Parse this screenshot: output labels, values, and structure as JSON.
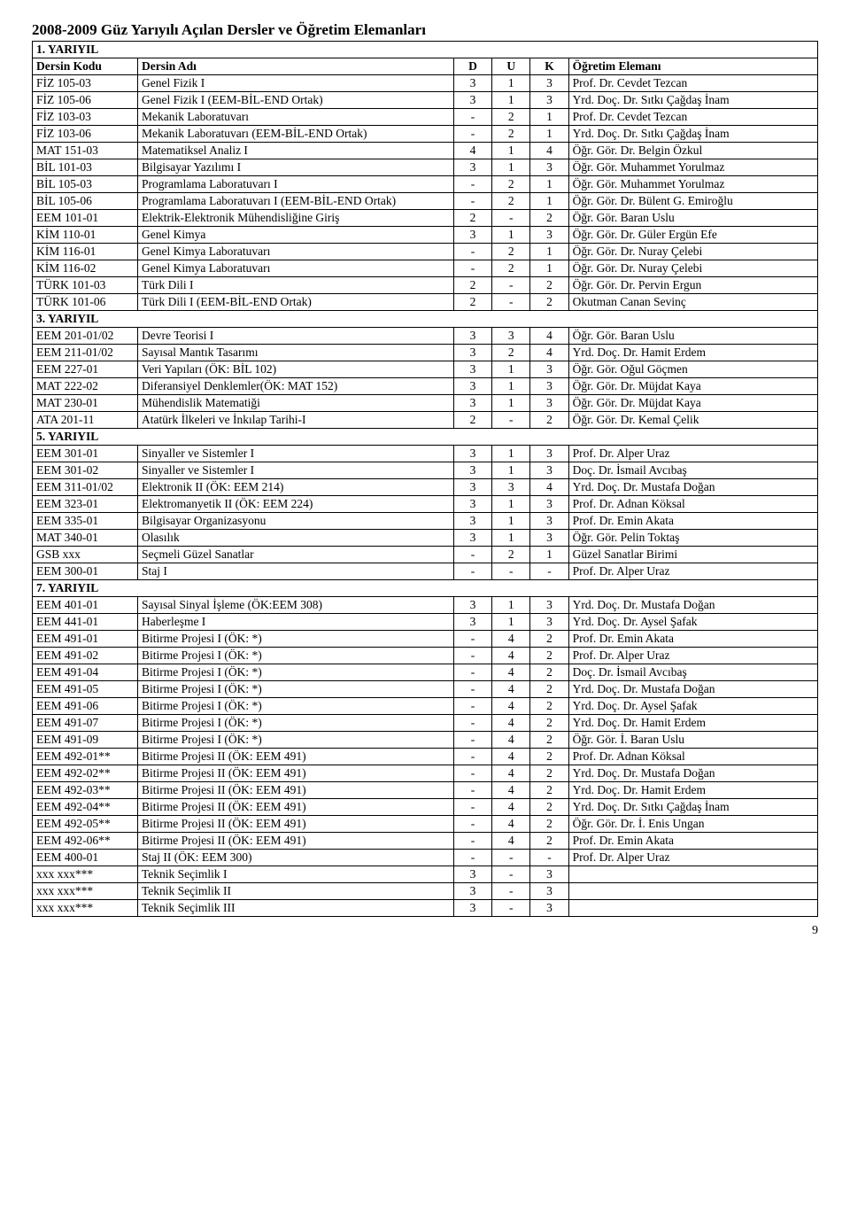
{
  "title": "2008-2009 Güz Yarıyılı Açılan Dersler ve Öğretim Elemanları",
  "headers": {
    "code": "Dersin Kodu",
    "name": "Dersin Adı",
    "d": "D",
    "u": "U",
    "k": "K",
    "inst": "Öğretim Elemanı"
  },
  "page_number": "9",
  "sections": [
    {
      "label": "1. YARIYIL",
      "rows": [
        {
          "code": "FİZ 105-03",
          "name": "Genel Fizik I",
          "d": "3",
          "u": "1",
          "k": "3",
          "inst": "Prof. Dr. Cevdet Tezcan"
        },
        {
          "code": "FİZ 105-06",
          "name": "Genel Fizik I  (EEM-BİL-END Ortak)",
          "d": "3",
          "u": "1",
          "k": "3",
          "inst": "Yrd. Doç. Dr. Sıtkı Çağdaş İnam"
        },
        {
          "code": "FİZ 103-03",
          "name": "Mekanik Laboratuvarı",
          "d": "-",
          "u": "2",
          "k": "1",
          "inst": "Prof. Dr. Cevdet Tezcan"
        },
        {
          "code": "FİZ 103-06",
          "name": "Mekanik Laboratuvarı (EEM-BİL-END Ortak)",
          "d": "-",
          "u": "2",
          "k": "1",
          "inst": "Yrd. Doç. Dr. Sıtkı Çağdaş İnam"
        },
        {
          "code": "MAT 151-03",
          "name": "Matematiksel Analiz I",
          "d": "4",
          "u": "1",
          "k": "4",
          "inst": "Öğr. Gör. Dr. Belgin Özkul"
        },
        {
          "code": "BİL 101-03",
          "name": "Bilgisayar Yazılımı I",
          "d": "3",
          "u": "1",
          "k": "3",
          "inst": "Öğr. Gör. Muhammet Yorulmaz"
        },
        {
          "code": "BİL 105-03",
          "name": "Programlama Laboratuvarı I",
          "d": "-",
          "u": "2",
          "k": "1",
          "inst": "Öğr. Gör. Muhammet Yorulmaz"
        },
        {
          "code": "BİL 105-06",
          "name": "Programlama Laboratuvarı I (EEM-BİL-END Ortak)",
          "d": "-",
          "u": "2",
          "k": "1",
          "inst": "Öğr. Gör. Dr. Bülent G. Emiroğlu"
        },
        {
          "code": "EEM 101-01",
          "name": "Elektrik-Elektronik Mühendisliğine Giriş",
          "d": "2",
          "u": "-",
          "k": "2",
          "inst": "Öğr. Gör. Baran Uslu"
        },
        {
          "code": "KİM 110-01",
          "name": "Genel Kimya",
          "d": "3",
          "u": "1",
          "k": "3",
          "inst": "Öğr. Gör. Dr. Güler Ergün Efe"
        },
        {
          "code": "KİM 116-01",
          "name": "Genel Kimya Laboratuvarı",
          "d": "-",
          "u": "2",
          "k": "1",
          "inst": "Öğr. Gör. Dr. Nuray Çelebi"
        },
        {
          "code": "KİM 116-02",
          "name": "Genel Kimya Laboratuvarı",
          "d": "-",
          "u": "2",
          "k": "1",
          "inst": "Öğr. Gör. Dr. Nuray Çelebi"
        },
        {
          "code": "TÜRK 101-03",
          "name": "Türk Dili I",
          "d": "2",
          "u": "-",
          "k": "2",
          "inst": "Öğr. Gör. Dr. Pervin Ergun"
        },
        {
          "code": "TÜRK 101-06",
          "name": "Türk Dili I (EEM-BİL-END Ortak)",
          "d": "2",
          "u": "-",
          "k": "2",
          "inst": "Okutman Canan Sevinç"
        }
      ]
    },
    {
      "label": "3. YARIYIL",
      "rows": [
        {
          "code": "EEM 201-01/02",
          "name": "Devre Teorisi I",
          "d": "3",
          "u": "3",
          "k": "4",
          "inst": "Öğr. Gör. Baran Uslu"
        },
        {
          "code": "EEM 211-01/02",
          "name": "Sayısal Mantık Tasarımı",
          "d": "3",
          "u": "2",
          "k": "4",
          "inst": "Yrd. Doç. Dr. Hamit Erdem"
        },
        {
          "code": "EEM 227-01",
          "name": "Veri Yapıları            (ÖK: BİL 102)",
          "d": "3",
          "u": "1",
          "k": "3",
          "inst": "Öğr. Gör. Oğul Göçmen"
        },
        {
          "code": "MAT 222-02",
          "name": "Diferansiyel Denklemler(ÖK: MAT 152)",
          "d": "3",
          "u": "1",
          "k": "3",
          "inst": "Öğr. Gör. Dr. Müjdat Kaya"
        },
        {
          "code": "MAT 230-01",
          "name": "Mühendislik Matematiği",
          "d": "3",
          "u": "1",
          "k": "3",
          "inst": "Öğr. Gör. Dr. Müjdat Kaya"
        },
        {
          "code": "ATA 201-11",
          "name": "Atatürk İlkeleri ve İnkılap Tarihi-I",
          "d": "2",
          "u": "-",
          "k": "2",
          "inst": "Öğr. Gör. Dr. Kemal Çelik"
        }
      ]
    },
    {
      "label": "5. YARIYIL",
      "rows": [
        {
          "code": "EEM 301-01",
          "name": "Sinyaller ve Sistemler I",
          "d": "3",
          "u": "1",
          "k": "3",
          "inst": "Prof. Dr. Alper Uraz"
        },
        {
          "code": "EEM 301-02",
          "name": "Sinyaller ve Sistemler I",
          "d": "3",
          "u": "1",
          "k": "3",
          "inst": "Doç. Dr. İsmail Avcıbaş"
        },
        {
          "code": "EEM 311-01/02",
          "name": "Elektronik II        (ÖK: EEM 214)",
          "d": "3",
          "u": "3",
          "k": "4",
          "inst": "Yrd. Doç. Dr. Mustafa Doğan"
        },
        {
          "code": "EEM 323-01",
          "name": "Elektromanyetik II    (ÖK: EEM 224)",
          "d": "3",
          "u": "1",
          "k": "3",
          "inst": "Prof. Dr. Adnan Köksal"
        },
        {
          "code": "EEM 335-01",
          "name": "Bilgisayar Organizasyonu",
          "d": "3",
          "u": "1",
          "k": "3",
          "inst": "Prof. Dr. Emin Akata"
        },
        {
          "code": "MAT 340-01",
          "name": "Olasılık",
          "d": "3",
          "u": "1",
          "k": "3",
          "inst": "Öğr. Gör. Pelin Toktaş"
        },
        {
          "code": "GSB xxx",
          "name": "Seçmeli Güzel Sanatlar",
          "d": "-",
          "u": "2",
          "k": "1",
          "inst": "Güzel Sanatlar Birimi"
        },
        {
          "code": "EEM 300-01",
          "name": "Staj I",
          "d": "-",
          "u": "-",
          "k": "-",
          "inst": "Prof. Dr. Alper Uraz"
        }
      ]
    },
    {
      "label": "7. YARIYIL",
      "rows": [
        {
          "code": "EEM 401-01",
          "name": "Sayısal Sinyal İşleme    (ÖK:EEM 308)",
          "d": "3",
          "u": "1",
          "k": "3",
          "inst": "Yrd. Doç. Dr. Mustafa Doğan"
        },
        {
          "code": "EEM 441-01",
          "name": "Haberleşme I",
          "d": "3",
          "u": "1",
          "k": "3",
          "inst": "Yrd. Doç. Dr. Aysel Şafak"
        },
        {
          "code": "EEM 491-01",
          "name": "Bitirme Projesi I       (ÖK: *)",
          "d": "-",
          "u": "4",
          "k": "2",
          "inst": "Prof. Dr. Emin Akata"
        },
        {
          "code": "EEM 491-02",
          "name": "Bitirme Projesi I       (ÖK: *)",
          "d": "-",
          "u": "4",
          "k": "2",
          "inst": "Prof. Dr. Alper Uraz"
        },
        {
          "code": "EEM 491-04",
          "name": "Bitirme Projesi I       (ÖK: *)",
          "d": "-",
          "u": "4",
          "k": "2",
          "inst": "Doç. Dr. İsmail Avcıbaş"
        },
        {
          "code": "EEM 491-05",
          "name": "Bitirme Projesi I       (ÖK: *)",
          "d": "-",
          "u": "4",
          "k": "2",
          "inst": "Yrd. Doç. Dr. Mustafa Doğan"
        },
        {
          "code": "EEM 491-06",
          "name": "Bitirme Projesi I       (ÖK: *)",
          "d": "-",
          "u": "4",
          "k": "2",
          "inst": "Yrd. Doç. Dr. Aysel Şafak"
        },
        {
          "code": "EEM 491-07",
          "name": "Bitirme Projesi I       (ÖK: *)",
          "d": "-",
          "u": "4",
          "k": "2",
          "inst": "Yrd. Doç. Dr. Hamit Erdem"
        },
        {
          "code": "EEM 491-09",
          "name": "Bitirme Projesi I       (ÖK: *)",
          "d": "-",
          "u": "4",
          "k": "2",
          "inst": "Öğr. Gör. İ. Baran Uslu"
        },
        {
          "code": "EEM 492-01**",
          "name": "Bitirme Projesi II       (ÖK: EEM 491)",
          "d": "-",
          "u": "4",
          "k": "2",
          "inst": "Prof. Dr. Adnan Köksal"
        },
        {
          "code": "EEM 492-02**",
          "name": "Bitirme Projesi II       (ÖK: EEM 491)",
          "d": "-",
          "u": "4",
          "k": "2",
          "inst": "Yrd. Doç. Dr. Mustafa Doğan"
        },
        {
          "code": "EEM 492-03**",
          "name": "Bitirme Projesi II       (ÖK: EEM 491)",
          "d": "-",
          "u": "4",
          "k": "2",
          "inst": "Yrd. Doç. Dr. Hamit Erdem"
        },
        {
          "code": "EEM 492-04**",
          "name": "Bitirme Projesi II       (ÖK: EEM 491)",
          "d": "-",
          "u": "4",
          "k": "2",
          "inst": "Yrd. Doç. Dr. Sıtkı Çağdaş İnam"
        },
        {
          "code": "EEM 492-05**",
          "name": "Bitirme Projesi II       (ÖK: EEM 491)",
          "d": "-",
          "u": "4",
          "k": "2",
          "inst": "Öğr. Gör. Dr. İ. Enis Ungan"
        },
        {
          "code": "EEM 492-06**",
          "name": "Bitirme Projesi II       (ÖK: EEM 491)",
          "d": "-",
          "u": "4",
          "k": "2",
          "inst": "Prof. Dr. Emin Akata"
        },
        {
          "code": "EEM 400-01",
          "name": "Staj II                    (ÖK: EEM 300)",
          "d": "-",
          "u": "-",
          "k": "-",
          "inst": "Prof. Dr. Alper Uraz"
        },
        {
          "code": "xxx xxx***",
          "name": "Teknik Seçimlik I",
          "d": "3",
          "u": "-",
          "k": "3",
          "inst": ""
        },
        {
          "code": "xxx xxx***",
          "name": "Teknik Seçimlik II",
          "d": "3",
          "u": "-",
          "k": "3",
          "inst": ""
        },
        {
          "code": "xxx xxx***",
          "name": "Teknik Seçimlik III",
          "d": "3",
          "u": "-",
          "k": "3",
          "inst": ""
        }
      ]
    }
  ]
}
